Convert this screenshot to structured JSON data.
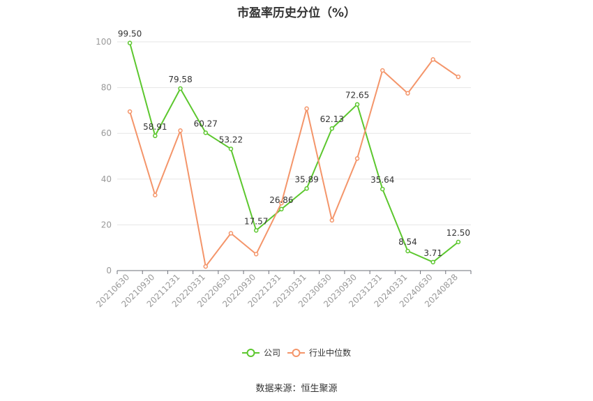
{
  "chart_data": {
    "type": "line",
    "title": "市盈率历史分位（%）",
    "categories": [
      "20210630",
      "20210930",
      "20211231",
      "20220331",
      "20220630",
      "20220930",
      "20221231",
      "20230331",
      "20230630",
      "20230930",
      "20231231",
      "20240331",
      "20240630",
      "20240828"
    ],
    "series": [
      {
        "name": "公司",
        "color": "#5cc72e",
        "values": [
          99.5,
          58.91,
          79.58,
          60.27,
          53.22,
          17.57,
          26.86,
          35.89,
          62.13,
          72.65,
          35.64,
          8.54,
          3.71,
          12.5
        ],
        "labels": [
          "99.50",
          "58.91",
          "79.58",
          "60.27",
          "53.22",
          "17.57",
          "26.86",
          "35.89",
          "62.13",
          "72.65",
          "35.64",
          "8.54",
          "3.71",
          "12.50"
        ]
      },
      {
        "name": "行业中位数",
        "color": "#f4956a",
        "values": [
          69.5,
          33,
          61.2,
          1.8,
          16.3,
          7.2,
          29.5,
          70.8,
          22,
          49,
          87.5,
          77.5,
          92.3,
          84.7
        ]
      }
    ],
    "yticks": [
      "0",
      "20",
      "40",
      "60",
      "80",
      "100"
    ],
    "ylim": [
      0,
      100
    ],
    "grid": true,
    "legend_position": "bottom"
  },
  "footer": {
    "source": "数据来源：恒生聚源"
  }
}
